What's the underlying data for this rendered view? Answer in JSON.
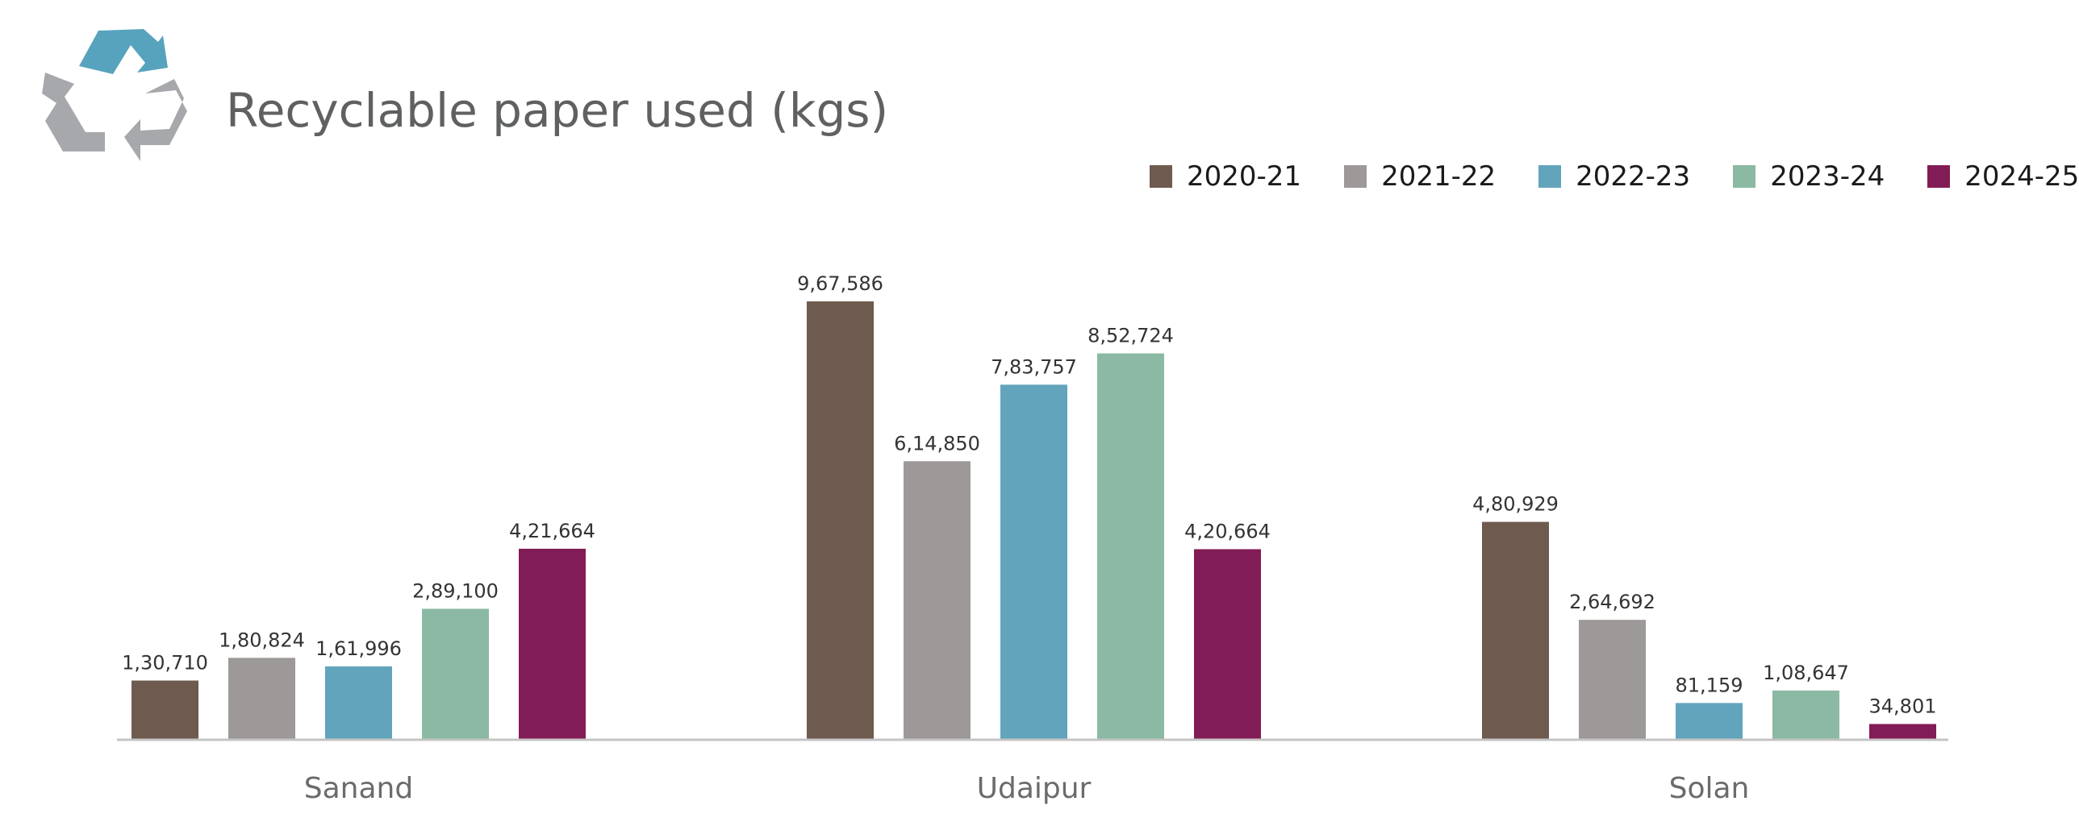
{
  "header": {
    "title": "Recyclable paper used (kgs)"
  },
  "logo": {
    "icon": "recycle-icon",
    "colors": {
      "top": "#57a3bd",
      "sides": "#a6a8ab"
    }
  },
  "chart_data": {
    "type": "bar",
    "title": "Recyclable paper used (kgs)",
    "categories": [
      "Sanand",
      "Udaipur",
      "Solan"
    ],
    "series": [
      {
        "name": "2020-21",
        "color": "#6f5a4f",
        "values": [
          130710,
          967586,
          480929
        ],
        "labels": [
          "1,30,710",
          "9,67,586",
          "4,80,929"
        ]
      },
      {
        "name": "2021-22",
        "color": "#9c9998",
        "values": [
          180824,
          614850,
          264692
        ],
        "labels": [
          "1,80,824",
          "6,14,850",
          "2,64,692"
        ]
      },
      {
        "name": "2022-23",
        "color": "#62a4bc",
        "values": [
          161996,
          783757,
          81159
        ],
        "labels": [
          "1,61,996",
          "7,83,757",
          "81,159"
        ]
      },
      {
        "name": "2023-24",
        "color": "#8bb9a3",
        "values": [
          289100,
          852724,
          108647
        ],
        "labels": [
          "2,89,100",
          "8,52,724",
          "1,08,647"
        ]
      },
      {
        "name": "2024-25",
        "color": "#821c56",
        "values": [
          421664,
          420664,
          34801
        ],
        "labels": [
          "4,21,664",
          "4,20,664",
          "34,801"
        ]
      }
    ],
    "xlabel": "",
    "ylabel": "",
    "ylim": [
      0,
      1000000
    ],
    "grid": false,
    "legend": "top-right"
  }
}
